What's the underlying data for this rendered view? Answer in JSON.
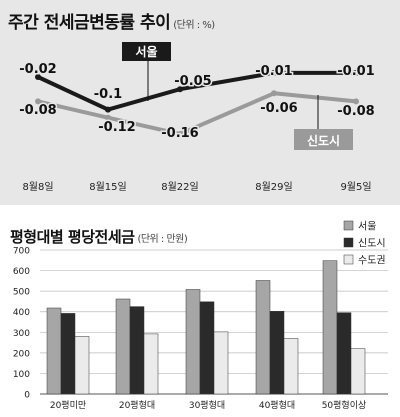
{
  "chart_data": [
    {
      "type": "line",
      "title": "주간 전세금변동률 추이",
      "unit": "(단위 : %)",
      "categories": [
        "8월8일",
        "8월15일",
        "8월22일",
        "8월29일",
        "9월5일"
      ],
      "series": [
        {
          "name": "서울",
          "values": [
            -0.02,
            -0.1,
            -0.05,
            -0.01,
            -0.01
          ],
          "labels": [
            "-0.02",
            "-0.1",
            "-0.05",
            "-0.01",
            "-0.01"
          ],
          "color": "#1a1a1a"
        },
        {
          "name": "신도시",
          "values": [
            -0.08,
            -0.12,
            -0.16,
            -0.06,
            -0.08
          ],
          "labels": [
            "-0.08",
            "-0.12",
            "-0.16",
            "-0.06",
            "-0.08"
          ],
          "color": "#9a9a9a"
        }
      ]
    },
    {
      "type": "bar",
      "title": "평형대별 평당전세금",
      "unit": "(단위 : 만원)",
      "categories": [
        "20평미만",
        "20평형대",
        "30평형대",
        "40평형대",
        "50평형이상"
      ],
      "ylim": [
        0,
        700
      ],
      "yticks": [
        "0",
        "100",
        "200",
        "300",
        "400",
        "500",
        "600",
        "700"
      ],
      "series": [
        {
          "name": "서울",
          "values": [
            418,
            462,
            508,
            552,
            648
          ],
          "color": "#a6a6a6"
        },
        {
          "name": "신도시",
          "values": [
            392,
            425,
            448,
            402,
            395
          ],
          "color": "#2a2a2a"
        },
        {
          "name": "수도권",
          "values": [
            280,
            292,
            302,
            270,
            220
          ],
          "color": "#ebebeb"
        }
      ]
    }
  ]
}
